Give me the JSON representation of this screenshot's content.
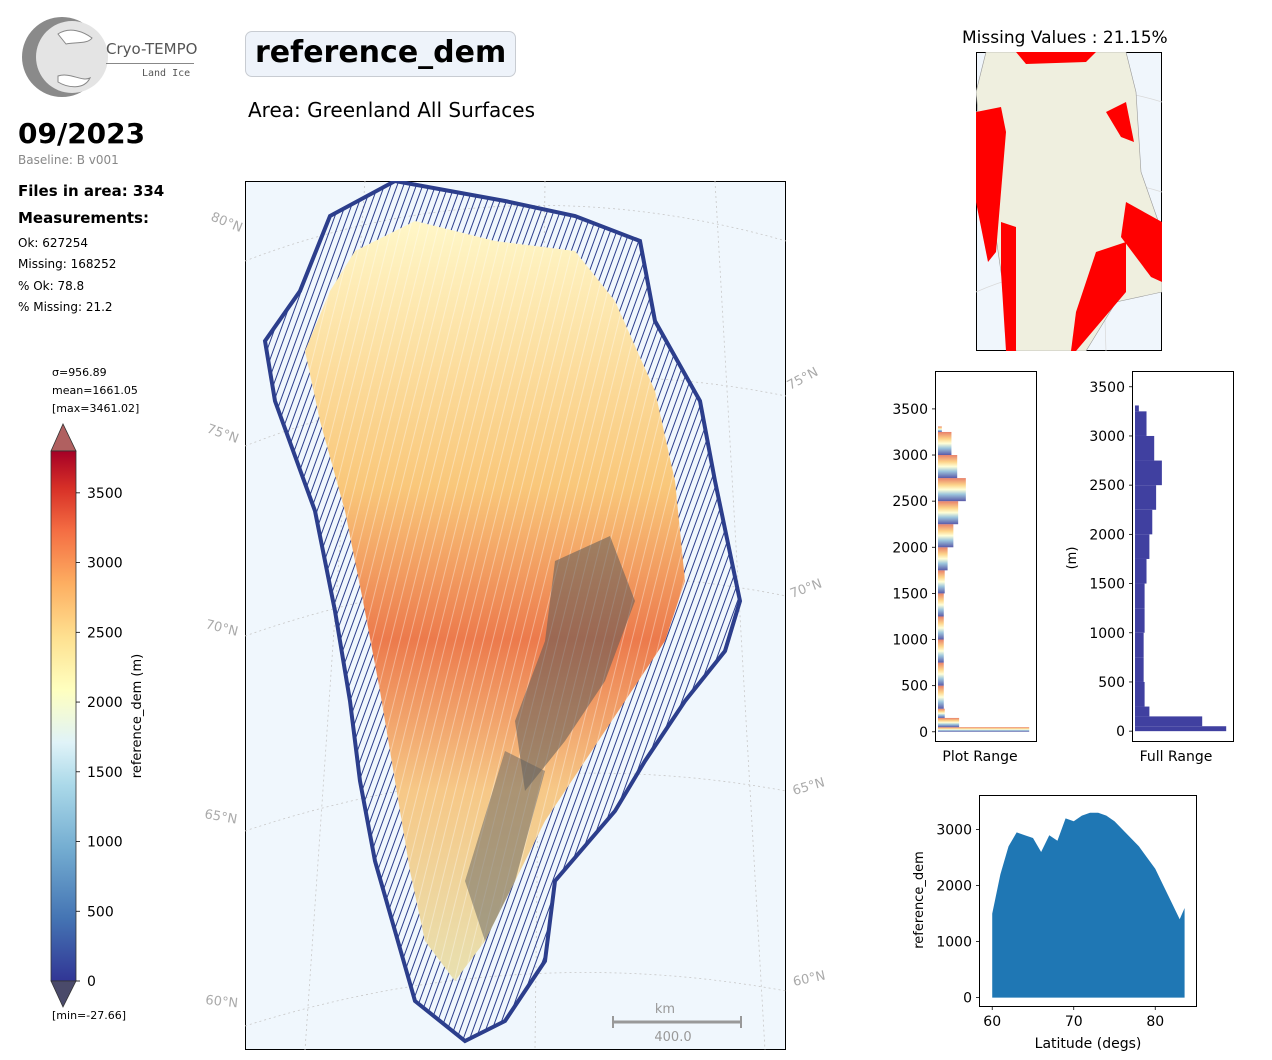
{
  "header": {
    "logo": {
      "name": "Cryo-TEMPO",
      "subtitle": "Land Ice"
    },
    "title": "reference_dem",
    "area": "Area: Greenland All Surfaces",
    "month": "09/2023",
    "baseline": "Baseline: B v001"
  },
  "stats": {
    "files": "Files in area: 334",
    "measurements_label": "Measurements:",
    "ok": "Ok: 627254",
    "missing": "Missing: 168252",
    "pct_ok": "% Ok: 78.8",
    "pct_missing": "% Missing: 21.2"
  },
  "colorbar": {
    "sigma": "σ=956.89",
    "mean": "mean=1661.05",
    "max": "[max=3461.02]",
    "min": "[min=-27.66]",
    "label": "reference_dem (m)",
    "ticks": [
      "0",
      "500",
      "1000",
      "1500",
      "2000",
      "2500",
      "3000",
      "3500"
    ],
    "colors": {
      "low": "#313695",
      "mid": "#ffffbf",
      "high": "#a50026",
      "under": "#4a4a6a",
      "over": "#b06060"
    }
  },
  "map": {
    "lat_labels": [
      "80°N",
      "75°N",
      "70°N",
      "65°N",
      "60°N",
      "75°N",
      "70°N",
      "65°N",
      "60°N"
    ],
    "scale_unit": "km",
    "scale_value": "400.0"
  },
  "missing_panel": {
    "title": "Missing Values : 21.15%",
    "colors": {
      "land": "#efefdf",
      "ocean": "#f0f6fc",
      "missing": "#ff0000"
    }
  },
  "chart_data": [
    {
      "type": "bar",
      "orientation": "horizontal",
      "xlabel": "Plot Range",
      "ylabel": "",
      "ylim": [
        -100,
        3900
      ],
      "yticks": [
        "0",
        "500",
        "1000",
        "1500",
        "2000",
        "2500",
        "3000",
        "3500"
      ],
      "bins": [
        0,
        50,
        150,
        250,
        500,
        750,
        1000,
        1250,
        1500,
        1750,
        2000,
        2250,
        2500,
        2750,
        3000,
        3250
      ],
      "relative_counts": [
        0.95,
        0.22,
        0.07,
        0.06,
        0.06,
        0.06,
        0.06,
        0.06,
        0.07,
        0.1,
        0.16,
        0.21,
        0.29,
        0.2,
        0.14,
        0.04
      ]
    },
    {
      "type": "bar",
      "orientation": "horizontal",
      "xlabel": "Full Range",
      "ylabel": "(m)",
      "ylim": [
        -100,
        3650
      ],
      "yticks": [
        "0",
        "500",
        "1000",
        "1500",
        "2000",
        "2500",
        "3000",
        "3500"
      ],
      "bins": [
        0,
        50,
        150,
        250,
        500,
        750,
        1000,
        1250,
        1500,
        1750,
        2000,
        2250,
        2500,
        2750,
        3000,
        3250
      ],
      "relative_counts": [
        0.95,
        0.7,
        0.15,
        0.1,
        0.09,
        0.09,
        0.1,
        0.1,
        0.12,
        0.15,
        0.18,
        0.22,
        0.28,
        0.2,
        0.12,
        0.04
      ],
      "color": "#4040a0"
    },
    {
      "type": "scatter",
      "xlabel": "Latitude (degs)",
      "ylabel": "reference_dem",
      "xlim": [
        58.5,
        85
      ],
      "ylim": [
        -150,
        3600
      ],
      "xticks": [
        "60",
        "70",
        "80"
      ],
      "yticks": [
        "0",
        "1000",
        "2000",
        "3000"
      ],
      "color": "#1f77b4",
      "envelope_lat": [
        60,
        61,
        62,
        63,
        64,
        65,
        66,
        67,
        68,
        69,
        70,
        71,
        72,
        73,
        74,
        75,
        76,
        77,
        78,
        79,
        80,
        81,
        82,
        83,
        83.6
      ],
      "envelope_max": [
        1500,
        2200,
        2700,
        2950,
        2900,
        2850,
        2600,
        2900,
        2800,
        3200,
        3150,
        3250,
        3300,
        3300,
        3250,
        3150,
        3000,
        2850,
        2700,
        2500,
        2300,
        2000,
        1700,
        1400,
        1600
      ]
    }
  ]
}
